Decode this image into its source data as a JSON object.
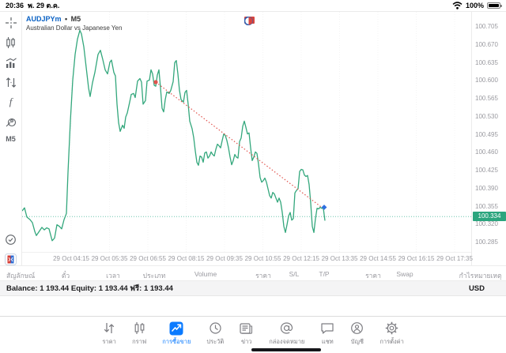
{
  "status_bar": {
    "time": "20:36",
    "date": "พ. 29 ต.ค.",
    "battery": "100%"
  },
  "chart_header": {
    "symbol": "AUDJPYm",
    "separator": "•",
    "timeframe": "M5",
    "description": "Australian Dollar vs Japanese Yen"
  },
  "sidebar": {
    "timeframe_label": "M5"
  },
  "colors": {
    "line_green": "#33a77c",
    "badge_teal": "#2ba57e",
    "price_line_teal": "#6cc5ae",
    "trend_red": "#e1544e",
    "marker_blue": "#2f6fe0",
    "accent_blue": "#0a7aff",
    "symbol_blue": "#0b62c4",
    "grid_gray": "rgba(0,0,0,0.045)"
  },
  "chart_data": {
    "type": "line",
    "title": "AUDJPYm M5 line chart",
    "ylabel": "price",
    "grid": "faint vertical ticks",
    "x_axis_labels": [
      "29 Oct 04:15",
      "29 Oct 05:35",
      "29 Oct 06:55",
      "29 Oct 08:15",
      "29 Oct 09:35",
      "29 Oct 10:55",
      "29 Oct 12:15",
      "29 Oct 13:35",
      "29 Oct 14:55",
      "29 Oct 16:15",
      "29 Oct 17:35"
    ],
    "y_axis_labels": [
      "100.705",
      "100.670",
      "100.635",
      "100.600",
      "100.565",
      "100.530",
      "100.495",
      "100.460",
      "100.425",
      "100.390",
      "100.355",
      "100.320",
      "100.285"
    ],
    "ylim": [
      100.262,
      100.733
    ],
    "current_price": 100.334,
    "current_price_label": "100.334",
    "points": [
      [
        28,
        100.345
      ],
      [
        31,
        100.351
      ],
      [
        34,
        100.333
      ],
      [
        38,
        100.328
      ],
      [
        41,
        100.322
      ],
      [
        44,
        100.305
      ],
      [
        46,
        100.297
      ],
      [
        50,
        100.306
      ],
      [
        53,
        100.313
      ],
      [
        56,
        100.308
      ],
      [
        59,
        100.312
      ],
      [
        62,
        100.31
      ],
      [
        66,
        100.287
      ],
      [
        69,
        100.292
      ],
      [
        72,
        100.318
      ],
      [
        75,
        100.315
      ],
      [
        78,
        100.31
      ],
      [
        81,
        100.328
      ],
      [
        84,
        100.34
      ],
      [
        86,
        100.42
      ],
      [
        89,
        100.52
      ],
      [
        92,
        100.6
      ],
      [
        95,
        100.65
      ],
      [
        98,
        100.68
      ],
      [
        101,
        100.697
      ],
      [
        103,
        100.69
      ],
      [
        106,
        100.665
      ],
      [
        109,
        100.625
      ],
      [
        112,
        100.585
      ],
      [
        114,
        100.568
      ],
      [
        117,
        100.595
      ],
      [
        120,
        100.615
      ],
      [
        124,
        100.65
      ],
      [
        127,
        100.658
      ],
      [
        130,
        100.64
      ],
      [
        133,
        100.62
      ],
      [
        136,
        100.612
      ],
      [
        139,
        100.635
      ],
      [
        141,
        100.639
      ],
      [
        144,
        100.615
      ],
      [
        146,
        100.608
      ],
      [
        148,
        100.553
      ],
      [
        150,
        100.517
      ],
      [
        152,
        100.5
      ],
      [
        155,
        100.512
      ],
      [
        157,
        100.506
      ],
      [
        159,
        100.528
      ],
      [
        161,
        100.536
      ],
      [
        164,
        100.557
      ],
      [
        166,
        100.572
      ],
      [
        169,
        100.574
      ],
      [
        171,
        100.566
      ],
      [
        174,
        100.598
      ],
      [
        177,
        100.603
      ],
      [
        179,
        100.596
      ],
      [
        181,
        100.553
      ],
      [
        184,
        100.56
      ],
      [
        186,
        100.598
      ],
      [
        189,
        100.6
      ],
      [
        191,
        100.62
      ],
      [
        193,
        100.612
      ],
      [
        195,
        100.59
      ],
      [
        197,
        100.588
      ],
      [
        199,
        100.61
      ],
      [
        201,
        100.62
      ],
      [
        203,
        100.585
      ],
      [
        205,
        100.545
      ],
      [
        207,
        100.538
      ],
      [
        209,
        100.562
      ],
      [
        211,
        100.577
      ],
      [
        214,
        100.574
      ],
      [
        216,
        100.58
      ],
      [
        219,
        100.597
      ],
      [
        221,
        100.634
      ],
      [
        223,
        100.638
      ],
      [
        225,
        100.612
      ],
      [
        227,
        100.58
      ],
      [
        229,
        100.562
      ],
      [
        232,
        100.557
      ],
      [
        234,
        100.576
      ],
      [
        236,
        100.58
      ],
      [
        238,
        100.553
      ],
      [
        240,
        100.52
      ],
      [
        243,
        100.505
      ],
      [
        245,
        100.488
      ],
      [
        247,
        100.462
      ],
      [
        249,
        100.44
      ],
      [
        251,
        100.434
      ],
      [
        253,
        100.452
      ],
      [
        255,
        100.45
      ],
      [
        257,
        100.44
      ],
      [
        259,
        100.458
      ],
      [
        261,
        100.46
      ],
      [
        263,
        100.448
      ],
      [
        265,
        100.452
      ],
      [
        267,
        100.46
      ],
      [
        269,
        100.455
      ],
      [
        271,
        100.452
      ],
      [
        273,
        100.465
      ],
      [
        275,
        100.475
      ],
      [
        277,
        100.472
      ],
      [
        279,
        100.468
      ],
      [
        281,
        100.482
      ],
      [
        283,
        100.495
      ],
      [
        285,
        100.492
      ],
      [
        287,
        100.482
      ],
      [
        289,
        100.468
      ],
      [
        291,
        100.45
      ],
      [
        293,
        100.435
      ],
      [
        295,
        100.443
      ],
      [
        297,
        100.455
      ],
      [
        299,
        100.45
      ],
      [
        301,
        100.448
      ],
      [
        303,
        100.48
      ],
      [
        305,
        100.487
      ],
      [
        307,
        100.51
      ],
      [
        309,
        100.52
      ],
      [
        311,
        100.508
      ],
      [
        313,
        100.495
      ],
      [
        315,
        100.497
      ],
      [
        317,
        100.468
      ],
      [
        319,
        100.443
      ],
      [
        321,
        100.45
      ],
      [
        323,
        100.46
      ],
      [
        325,
        100.457
      ],
      [
        327,
        100.436
      ],
      [
        329,
        100.41
      ],
      [
        331,
        100.401
      ],
      [
        333,
        100.404
      ],
      [
        335,
        100.409
      ],
      [
        337,
        100.401
      ],
      [
        339,
        100.388
      ],
      [
        341,
        100.375
      ],
      [
        343,
        100.37
      ],
      [
        345,
        100.381
      ],
      [
        347,
        100.378
      ],
      [
        349,
        100.37
      ],
      [
        351,
        100.362
      ],
      [
        353,
        100.37
      ],
      [
        355,
        100.362
      ],
      [
        357,
        100.342
      ],
      [
        359,
        100.315
      ],
      [
        361,
        100.303
      ],
      [
        363,
        100.318
      ],
      [
        365,
        100.335
      ],
      [
        367,
        100.342
      ],
      [
        369,
        100.327
      ],
      [
        371,
        100.33
      ],
      [
        373,
        100.38
      ],
      [
        375,
        100.385
      ],
      [
        377,
        100.388
      ],
      [
        379,
        100.422
      ],
      [
        381,
        100.426
      ],
      [
        383,
        100.425
      ],
      [
        385,
        100.415
      ],
      [
        387,
        100.412
      ],
      [
        389,
        100.414
      ],
      [
        391,
        100.396
      ],
      [
        393,
        100.36
      ],
      [
        395,
        100.315
      ],
      [
        397,
        100.303
      ],
      [
        399,
        100.33
      ],
      [
        401,
        100.35
      ],
      [
        403,
        100.349
      ],
      [
        405,
        100.352
      ],
      [
        407,
        100.35
      ],
      [
        409,
        100.35
      ],
      [
        411,
        100.326
      ]
    ],
    "trend_line": {
      "from": {
        "x": 197,
        "price": 100.596
      },
      "to": {
        "x": 406,
        "price": 100.353
      }
    },
    "start_marker": {
      "x": 197,
      "price": 100.596,
      "shape": "dot",
      "color": "#e1544e"
    },
    "end_marker": {
      "x": 410,
      "price": 100.352,
      "shape": "diamond",
      "color": "#2f6fe0"
    }
  },
  "positions_table": {
    "headers": [
      "สัญลักษณ์",
      "ตั๋ว",
      "เวลา",
      "ประเภท",
      "Volume",
      "ราคา",
      "S/L",
      "T/P",
      "ราคา",
      "Swap",
      "กำไร",
      "หมายเหตุ"
    ]
  },
  "account_bar": {
    "summary": "Balance: 1 193.44 Equity: 1 193.44 ฟรี: 1 193.44",
    "currency": "USD"
  },
  "tab_bar": {
    "items": [
      {
        "label": "ราคา",
        "selected": false
      },
      {
        "label": "กราฟ",
        "selected": false
      },
      {
        "label": "การซื้อขาย",
        "selected": true
      },
      {
        "label": "ประวัติ",
        "selected": false
      },
      {
        "label": "ข่าว",
        "selected": false
      },
      {
        "label": "กล่องจดหมาย",
        "selected": false
      },
      {
        "label": "แชท",
        "selected": false
      },
      {
        "label": "บัญชี",
        "selected": false
      },
      {
        "label": "การตั้งค่า",
        "selected": false
      }
    ]
  }
}
